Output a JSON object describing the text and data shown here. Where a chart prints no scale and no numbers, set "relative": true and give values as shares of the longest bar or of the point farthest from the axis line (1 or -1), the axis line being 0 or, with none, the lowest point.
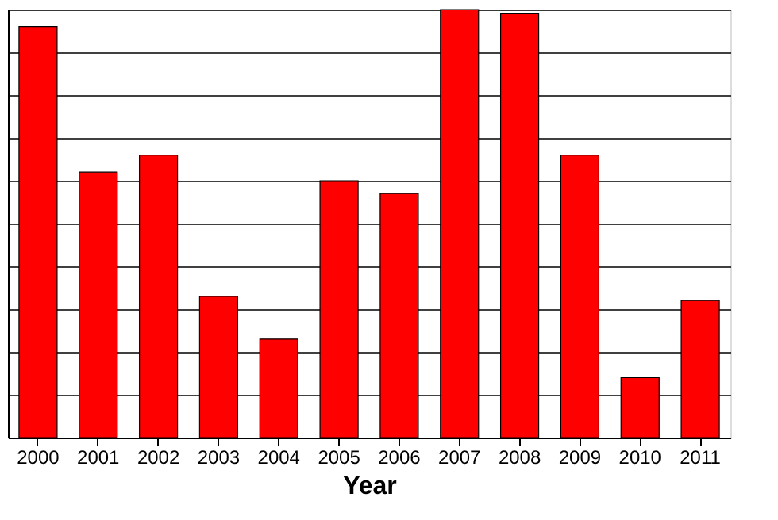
{
  "chart_data": {
    "type": "bar",
    "xlabel": "Year",
    "relative": true,
    "grid": "y",
    "color": "#ff0000",
    "categories": [
      "2000",
      "2001",
      "2002",
      "2003",
      "2004",
      "2005",
      "2006",
      "2007",
      "2008",
      "2009",
      "2010",
      "2011"
    ],
    "values": [
      0.96,
      0.62,
      0.66,
      0.33,
      0.23,
      0.6,
      0.57,
      1.0,
      0.99,
      0.66,
      0.14,
      0.32
    ]
  }
}
